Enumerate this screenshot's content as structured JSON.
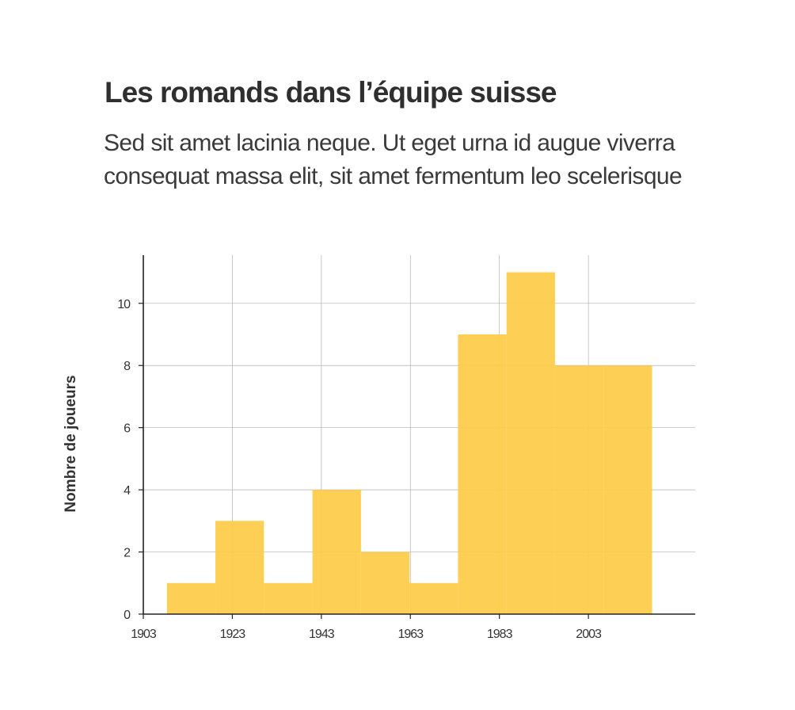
{
  "title": "Les romands dans l’équipe suisse",
  "subtitle": "Sed sit amet lacinia neque. Ut eget urna id augue viverra consequat massa elit, sit amet fermentum leo scelerisque",
  "chart_data": {
    "type": "bar",
    "ylabel": "Nombre de joueurs",
    "xlabel": "",
    "xlim": [
      1903,
      2027
    ],
    "ylim": [
      0,
      11.55
    ],
    "xticks": [
      1903,
      1923,
      1943,
      1963,
      1983,
      2003
    ],
    "yticks": [
      0,
      2,
      4,
      6,
      8,
      10
    ],
    "grid": true,
    "bin_edges": [
      1908.3,
      1919.2,
      1930.1,
      1941.0,
      1951.9,
      1962.8,
      1973.7,
      1984.6,
      1995.5,
      2006.4,
      2017.3
    ],
    "values": [
      1,
      3,
      1,
      4,
      2,
      1,
      9,
      11,
      8,
      8
    ],
    "colors": {
      "bar": "#fecc4c",
      "grid": "#b0b0b0",
      "axis": "#222222"
    }
  }
}
